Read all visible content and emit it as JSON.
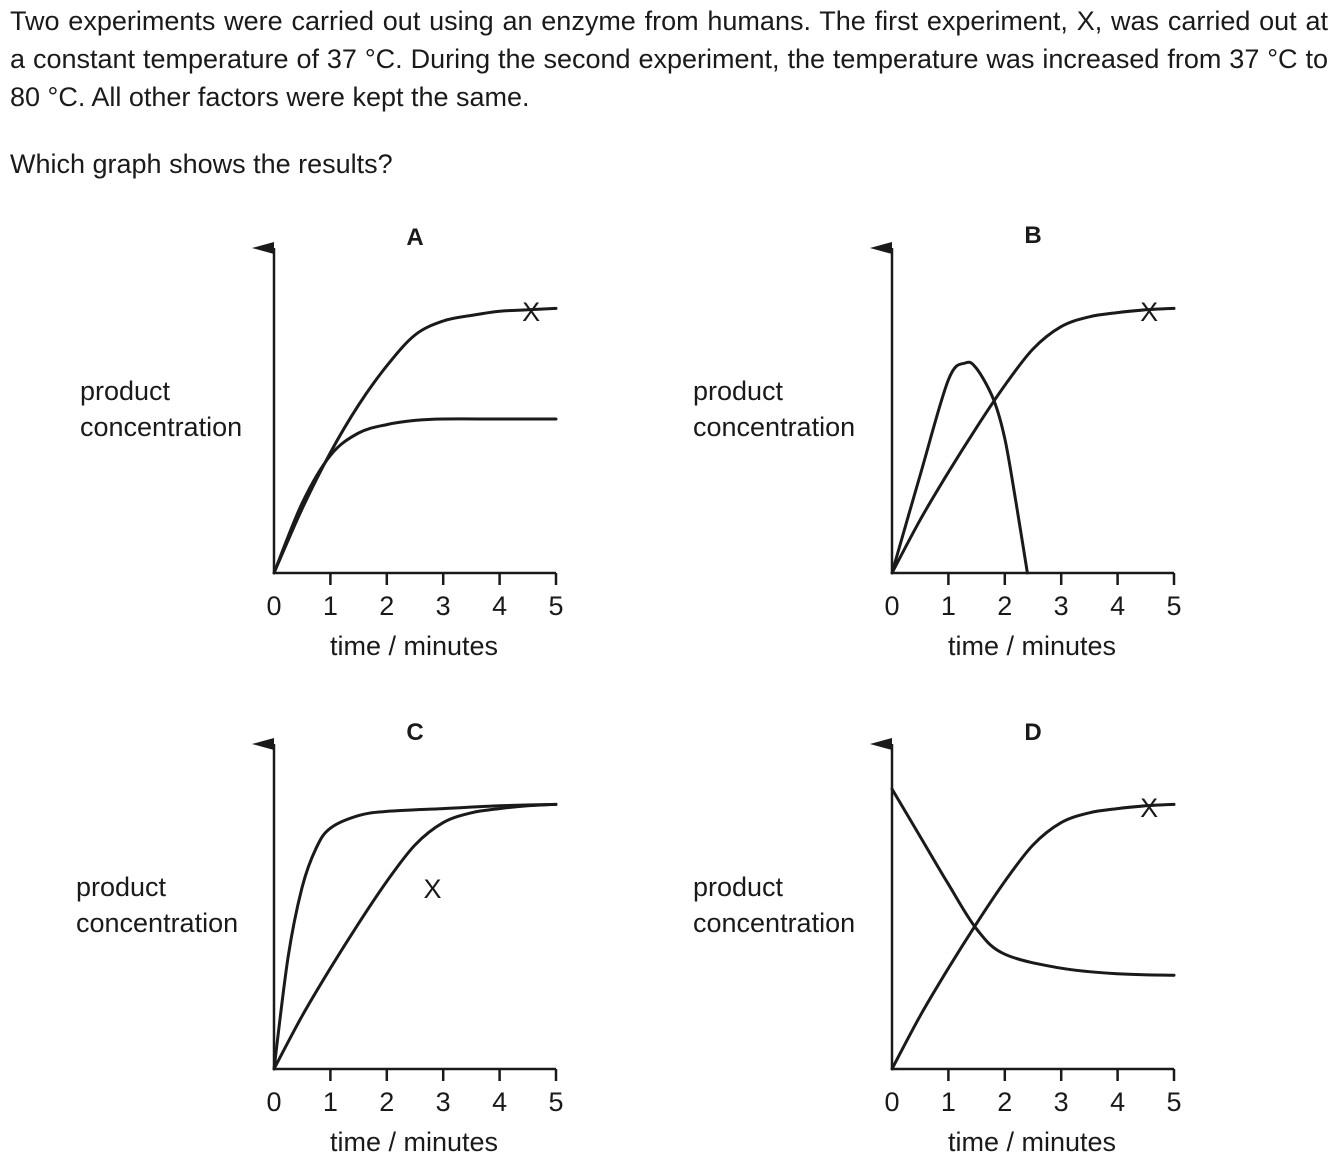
{
  "question": {
    "stem": "Two experiments were carried out using an enzyme from humans. The first experiment, X, was carried out at a constant temperature of 37 °C. During the second experiment, the temperature was increased from 37 °C to 80 °C. All other factors were kept the same.",
    "prompt": "Which graph shows the results?"
  },
  "chart_data": [
    {
      "type": "line",
      "label": "A",
      "ylabel": [
        "product",
        "concentration"
      ],
      "xlabel": "time / minutes",
      "x_ticks": [
        "0",
        "1",
        "2",
        "3",
        "4",
        "5"
      ],
      "xlim": [
        0,
        5
      ],
      "ylim": [
        0,
        10
      ],
      "series": [
        {
          "name": "X",
          "label_pos": [
            4.4,
            9.0
          ],
          "points": [
            [
              0,
              0
            ],
            [
              0.5,
              2.3
            ],
            [
              1,
              4.3
            ],
            [
              1.5,
              6.0
            ],
            [
              2,
              7.4
            ],
            [
              2.5,
              8.5
            ],
            [
              3,
              9.0
            ],
            [
              3.5,
              9.2
            ],
            [
              4,
              9.35
            ],
            [
              4.5,
              9.4
            ],
            [
              5,
              9.45
            ]
          ]
        },
        {
          "points": [
            [
              0,
              0
            ],
            [
              0.5,
              2.5
            ],
            [
              1,
              4.2
            ],
            [
              1.5,
              5.0
            ],
            [
              2,
              5.3
            ],
            [
              2.5,
              5.45
            ],
            [
              3,
              5.5
            ],
            [
              4,
              5.5
            ],
            [
              5,
              5.5
            ]
          ]
        }
      ]
    },
    {
      "type": "line",
      "label": "B",
      "ylabel": [
        "product",
        "concentration"
      ],
      "xlabel": "time / minutes",
      "x_ticks": [
        "0",
        "1",
        "2",
        "3",
        "4",
        "5"
      ],
      "xlim": [
        0,
        5
      ],
      "ylim": [
        0,
        10
      ],
      "series": [
        {
          "name": "X",
          "label_pos": [
            4.4,
            9.0
          ],
          "points": [
            [
              0,
              0
            ],
            [
              0.5,
              1.9
            ],
            [
              1,
              3.6
            ],
            [
              1.5,
              5.2
            ],
            [
              2,
              6.7
            ],
            [
              2.5,
              8.0
            ],
            [
              3,
              8.8
            ],
            [
              3.5,
              9.15
            ],
            [
              4,
              9.3
            ],
            [
              4.5,
              9.4
            ],
            [
              5,
              9.45
            ]
          ]
        },
        {
          "points": [
            [
              0,
              0
            ],
            [
              0.5,
              3.5
            ],
            [
              1,
              6.9
            ],
            [
              1.3,
              7.5
            ],
            [
              1.5,
              7.3
            ],
            [
              1.8,
              6.2
            ],
            [
              2.0,
              4.8
            ],
            [
              2.2,
              2.5
            ],
            [
              2.4,
              0
            ]
          ]
        }
      ]
    },
    {
      "type": "line",
      "label": "C",
      "ylabel": [
        "product",
        "concentration"
      ],
      "xlabel": "time / minutes",
      "x_ticks": [
        "0",
        "1",
        "2",
        "3",
        "4",
        "5"
      ],
      "xlim": [
        0,
        5
      ],
      "ylim": [
        0,
        10
      ],
      "series": [
        {
          "name": "X",
          "label_pos": [
            2.65,
            6.1
          ],
          "points": [
            [
              0,
              0
            ],
            [
              0.5,
              1.9
            ],
            [
              1,
              3.6
            ],
            [
              1.5,
              5.2
            ],
            [
              2,
              6.7
            ],
            [
              2.5,
              8.0
            ],
            [
              3,
              8.8
            ],
            [
              3.5,
              9.15
            ],
            [
              4,
              9.3
            ],
            [
              4.5,
              9.4
            ],
            [
              5,
              9.45
            ]
          ]
        },
        {
          "points": [
            [
              0,
              0
            ],
            [
              0.25,
              4.0
            ],
            [
              0.5,
              6.5
            ],
            [
              0.75,
              7.9
            ],
            [
              1,
              8.6
            ],
            [
              1.5,
              9.05
            ],
            [
              2,
              9.2
            ],
            [
              3,
              9.3
            ],
            [
              4,
              9.4
            ],
            [
              5,
              9.45
            ]
          ]
        }
      ]
    },
    {
      "type": "line",
      "label": "D",
      "ylabel": [
        "product",
        "concentration"
      ],
      "xlabel": "time / minutes",
      "x_ticks": [
        "0",
        "1",
        "2",
        "3",
        "4",
        "5"
      ],
      "xlim": [
        0,
        5
      ],
      "ylim": [
        0,
        10
      ],
      "series": [
        {
          "name": "X",
          "label_pos": [
            4.4,
            9.0
          ],
          "points": [
            [
              0,
              0
            ],
            [
              0.5,
              1.9
            ],
            [
              1,
              3.6
            ],
            [
              1.5,
              5.2
            ],
            [
              2,
              6.7
            ],
            [
              2.5,
              8.0
            ],
            [
              3,
              8.8
            ],
            [
              3.5,
              9.15
            ],
            [
              4,
              9.3
            ],
            [
              4.5,
              9.4
            ],
            [
              5,
              9.45
            ]
          ]
        },
        {
          "points": [
            [
              0,
              10.0
            ],
            [
              0.5,
              8.3
            ],
            [
              1,
              6.6
            ],
            [
              1.5,
              5.0
            ],
            [
              2,
              4.1
            ],
            [
              3,
              3.6
            ],
            [
              4,
              3.4
            ],
            [
              5,
              3.35
            ]
          ]
        }
      ]
    }
  ]
}
